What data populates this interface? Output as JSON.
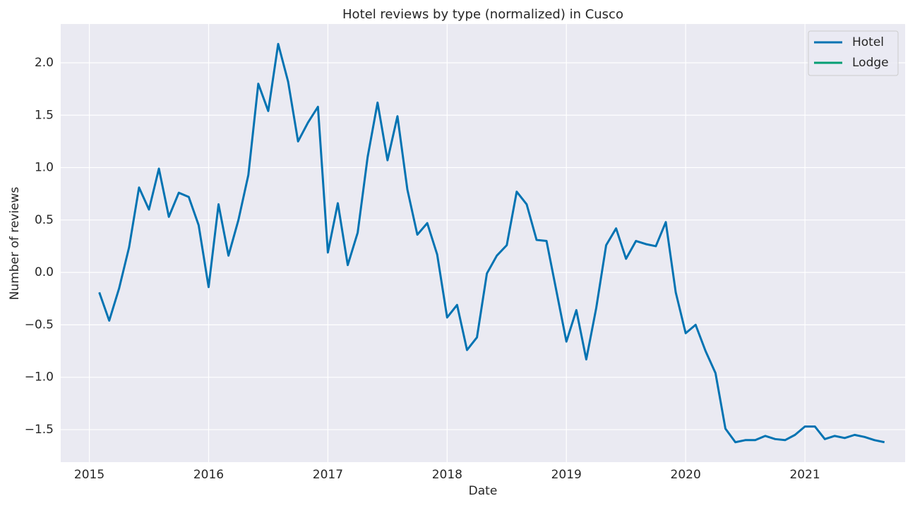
{
  "chart_data": {
    "type": "line",
    "title": "Hotel reviews by type (normalized) in Cusco",
    "x_label": "Date",
    "y_label": "Number of reviews",
    "x": [
      "2015-01",
      "2015-02",
      "2015-03",
      "2015-04",
      "2015-05",
      "2015-06",
      "2015-07",
      "2015-08",
      "2015-09",
      "2015-10",
      "2015-11",
      "2015-12",
      "2016-01",
      "2016-02",
      "2016-03",
      "2016-04",
      "2016-05",
      "2016-06",
      "2016-07",
      "2016-08",
      "2016-09",
      "2016-10",
      "2016-11",
      "2016-12",
      "2017-01",
      "2017-02",
      "2017-03",
      "2017-04",
      "2017-05",
      "2017-06",
      "2017-07",
      "2017-08",
      "2017-09",
      "2017-10",
      "2017-11",
      "2017-12",
      "2018-01",
      "2018-02",
      "2018-03",
      "2018-04",
      "2018-05",
      "2018-06",
      "2018-07",
      "2018-08",
      "2018-09",
      "2018-10",
      "2018-11",
      "2018-12",
      "2019-01",
      "2019-02",
      "2019-03",
      "2019-04",
      "2019-05",
      "2019-06",
      "2019-07",
      "2019-08",
      "2019-09",
      "2019-10",
      "2019-11",
      "2019-12",
      "2020-01",
      "2020-02",
      "2020-03",
      "2020-04",
      "2020-05",
      "2020-06",
      "2020-07",
      "2020-08",
      "2020-09",
      "2020-10",
      "2020-11",
      "2020-12",
      "2021-01",
      "2021-02",
      "2021-03",
      "2021-04",
      "2021-05",
      "2021-06",
      "2021-07",
      "2021-08"
    ],
    "series": [
      {
        "name": "Hotel",
        "color": "#0173b2",
        "values": [
          -0.19,
          -0.46,
          -0.15,
          0.24,
          0.81,
          0.6,
          0.99,
          0.53,
          0.76,
          0.72,
          0.45,
          -0.14,
          0.65,
          0.16,
          0.5,
          0.93,
          1.8,
          1.54,
          2.18,
          1.82,
          1.25,
          1.43,
          1.58,
          0.19,
          0.66,
          0.07,
          0.38,
          1.1,
          1.62,
          1.07,
          1.49,
          0.79,
          0.36,
          0.47,
          0.17,
          -0.43,
          -0.31,
          -0.74,
          -0.62,
          -0.01,
          0.16,
          0.26,
          0.77,
          0.65,
          0.31,
          0.3,
          -0.18,
          -0.66,
          -0.36,
          -0.83,
          -0.34,
          0.26,
          0.42,
          0.13,
          0.3,
          0.27,
          0.25,
          0.48,
          -0.19,
          -0.58,
          -0.5,
          -0.75,
          -0.96,
          -1.49,
          -1.62,
          -1.6,
          -1.6,
          -1.56,
          -1.59,
          -1.6,
          -1.55,
          -1.47,
          -1.47,
          -1.59,
          -1.56,
          -1.58,
          -1.55,
          -1.57,
          -1.6,
          -1.62
        ]
      },
      {
        "name": "Lodge",
        "color": "#029e73",
        "values": [
          null,
          null,
          null,
          null,
          null,
          null,
          null,
          null,
          null,
          null,
          null,
          null,
          null,
          null,
          null,
          null,
          null,
          null,
          null,
          null,
          null,
          null,
          null,
          null,
          null,
          null,
          null,
          null,
          null,
          null,
          null,
          null,
          null,
          null,
          null,
          null,
          null,
          null,
          null,
          null,
          null,
          null,
          null,
          null,
          null,
          null,
          null,
          null,
          null,
          null,
          null,
          null,
          null,
          null,
          null,
          null,
          null,
          null,
          null,
          null,
          null,
          null,
          null,
          null,
          null,
          null,
          null,
          null,
          null,
          null,
          null,
          null,
          null,
          null,
          null,
          null,
          null,
          null,
          null,
          null
        ]
      }
    ],
    "xlim": [
      2014.76,
      2021.84
    ],
    "xticks": [
      2015,
      2016,
      2017,
      2018,
      2019,
      2020,
      2021
    ],
    "ylim": [
      -1.81,
      2.37
    ],
    "yticks": [
      {
        "value": -1.5,
        "label": "−1.5"
      },
      {
        "value": -1.0,
        "label": "−1.0"
      },
      {
        "value": -0.5,
        "label": "−0.5"
      },
      {
        "value": 0,
        "label": "0.0"
      },
      0.5,
      {
        "value": 1.0,
        "label": "1.0"
      },
      1.5,
      {
        "value": 2.0,
        "label": "2.0"
      }
    ],
    "grid": true,
    "legend": "upper right"
  }
}
